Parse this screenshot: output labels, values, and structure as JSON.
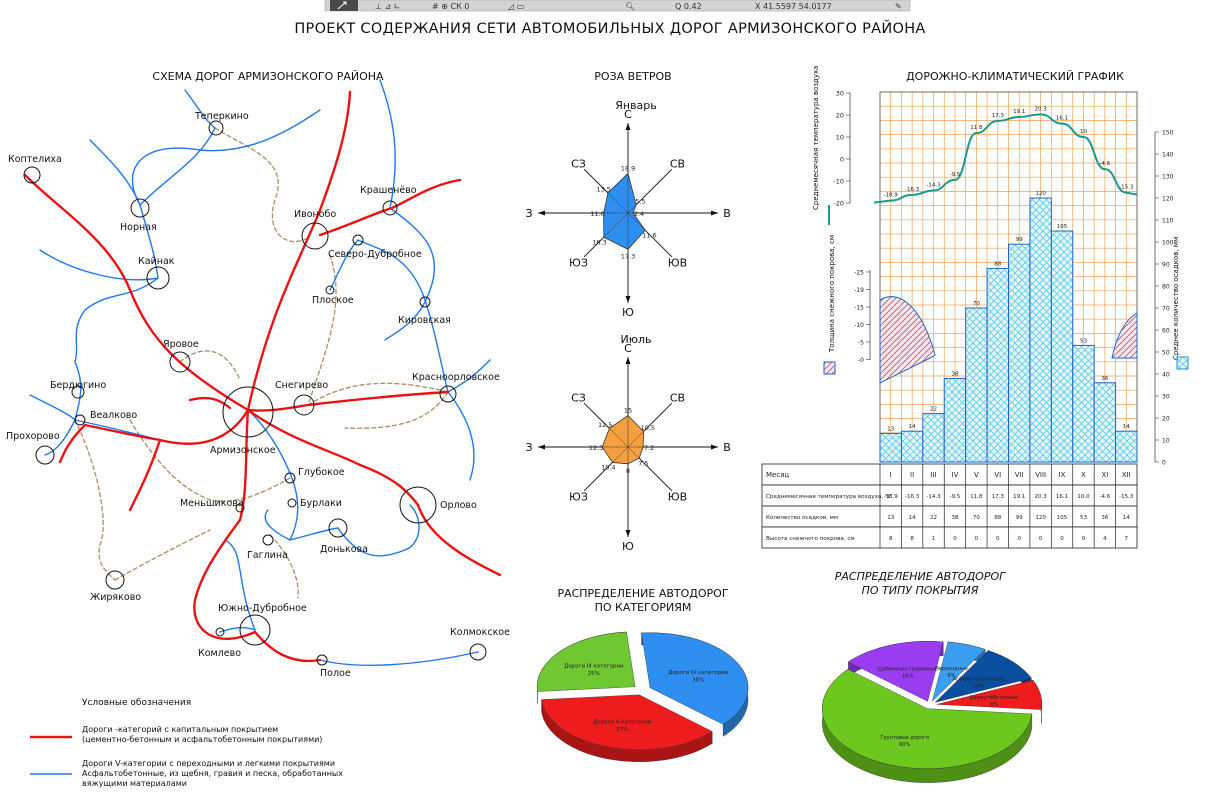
{
  "toolbar": {
    "coords": "X 41.5597 54.0177"
  },
  "main_title": "ПРОЕКТ СОДЕРЖАНИЯ СЕТИ АВТОМОБИЛЬНЫХ ДОРОГ АРМИЗОНСКОГО РАЙОНА",
  "map": {
    "title": "СХЕМА ДОРОГ АРМИЗОНСКОГО РАЙОНА",
    "villages": [
      "Теперкино",
      "Коптелиха",
      "Норная",
      "Ивонобо",
      "Крашенёво",
      "Северо-Дубробное",
      "Кайнак",
      "Плоское",
      "Кировская",
      "Яровое",
      "Бердюгино",
      "Снегирево",
      "Красноорловское",
      "Веалково",
      "Прохорово",
      "Армизонское",
      "Глубокое",
      "Меньшикова",
      "Бурлаки",
      "Орлово",
      "Гаглина",
      "Донькова",
      "Жиряково",
      "Южно-Дубробное",
      "Комлево",
      "Колмокское",
      "Полое"
    ],
    "legend_title": "Условные обозначения",
    "legend": [
      {
        "line1": "Дороги  -категорий с капитальным покрытием",
        "line2": "(цементно-бетонным и асфальтобетонным покрытиями)",
        "color": "#e81414"
      },
      {
        "line1": "Дороги  V-категории с переходными и легкими покрытиями",
        "line2": "Асфальтобетонные, из щебня, гравия и песка, обработанных",
        "line3": "вяжущими материалами",
        "color": "#1e78e8"
      }
    ]
  },
  "wind": {
    "title": "РОЗА ВЕТРОВ",
    "directions": [
      "С",
      "СВ",
      "В",
      "ЮВ",
      "Ю",
      "ЮЗ",
      "З",
      "СЗ"
    ],
    "january": {
      "label": "Январь",
      "color": "#2f8ff0",
      "values": [
        18.9,
        5.5,
        2.4,
        11.6,
        17.3,
        16.3,
        11.6,
        13.5
      ]
    },
    "july": {
      "label": "Июль",
      "color": "#f5a040",
      "values": [
        15.0,
        10.5,
        7.2,
        7.5,
        8.0,
        10.4,
        12.3,
        12.5
      ]
    }
  },
  "climate": {
    "title": "ДОРОЖНО-КЛИМАТИЧЕСКИЙ ГРАФИК",
    "temp_axis_label": "Среднемесячная температура воздуха",
    "snow_axis_label": "Толщина снежного покрова, см",
    "precip_axis_label": "Среднее количество осадков, мм",
    "months": [
      "I",
      "II",
      "III",
      "IV",
      "V",
      "VI",
      "VII",
      "VIII",
      "IX",
      "X",
      "XI",
      "XII"
    ],
    "temperature": [
      -18.9,
      -16.3,
      -14.3,
      -9.5,
      11.8,
      17.3,
      19.1,
      20.3,
      16.1,
      10.0,
      -4.6,
      -15.3
    ],
    "precipitation": [
      13,
      14,
      22,
      38,
      70,
      88,
      99,
      120,
      105,
      53,
      36,
      14
    ],
    "table": {
      "rows": [
        {
          "label": "Месяц",
          "cells": [
            "I",
            "II",
            "III",
            "IV",
            "V",
            "VI",
            "VII",
            "VIII",
            "IX",
            "X",
            "XI",
            "XII"
          ]
        },
        {
          "label": "Среднемесячная температура воздуха, °С",
          "cells": [
            "-18.9",
            "-16.3",
            "-14.3",
            "-9.5",
            "11.8",
            "17.3",
            "19.1",
            "20.3",
            "16.1",
            "10.0",
            "-4.6",
            "-15.3"
          ]
        },
        {
          "label": "Количество осадков, мм",
          "cells": [
            "13",
            "14",
            "22",
            "38",
            "70",
            "88",
            "99",
            "120",
            "105",
            "53",
            "36",
            "14"
          ]
        },
        {
          "label": "Высота снежного покрова, см",
          "cells": [
            "8",
            "8",
            "1",
            "0",
            "0",
            "0",
            "0",
            "0",
            "0",
            "0",
            "4",
            "7"
          ]
        }
      ]
    }
  },
  "pie_categories": {
    "title_line1": "РАСПРЕДЕЛЕНИЕ АВТОДОРОГ",
    "title_line2": "ПО КАТЕГОРИЯМ",
    "slices": [
      {
        "label": "Дороги IV категории",
        "value": 38,
        "color": "#2f8ff0"
      },
      {
        "label": "Дороги V категории",
        "value": 37,
        "color": "#ee1c1c"
      },
      {
        "label": "Дороги III категории",
        "value": 25,
        "color": "#6fc832"
      }
    ]
  },
  "pie_cover": {
    "title_line1": "РАСПРЕДЕЛЕНИЕ АВТОДОРОГ",
    "title_line2": "ПО ТИПУ ПОКРЫТИЯ",
    "slices": [
      {
        "label": "Грунтовые дороги",
        "value": 60,
        "color": "#6cc81e"
      },
      {
        "label": "Щебеночно-гравийные",
        "value": 16,
        "color": "#9a3cf0"
      },
      {
        "label": "Переходные",
        "value": 6,
        "color": "#3c9ef0"
      },
      {
        "label": "Асфальтобетонные",
        "value": 10,
        "color": "#0a4ea0"
      },
      {
        "label": "Цементобетонные",
        "value": 8,
        "color": "#ee1c1c"
      }
    ]
  }
}
